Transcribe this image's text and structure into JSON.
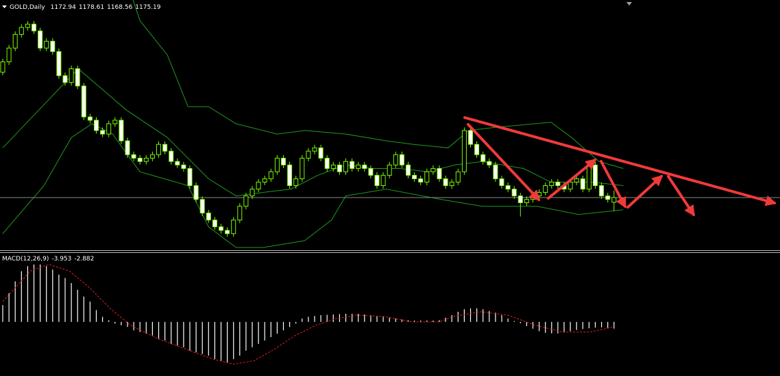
{
  "header": {
    "symbol": "GOLD,Daily"
  },
  "chart_data": [
    {
      "type": "candlestick",
      "up_color": "#000000",
      "down_color": "#ffffff",
      "wick_color": "#7cfc00",
      "band_color": "#1f9a1f",
      "price_line_color": "#8a8a8a",
      "ylim": [
        1150,
        1271
      ],
      "candles": [
        [
          1236,
          1242.5,
          1234.5,
          1241
        ],
        [
          1241,
          1249.2,
          1239.5,
          1247.7
        ],
        [
          1247.7,
          1255.8,
          1246.2,
          1254.3
        ],
        [
          1254.3,
          1259.2,
          1252.8,
          1257.7
        ],
        [
          1257.7,
          1260.8,
          1256.2,
          1259.3
        ],
        [
          1259.3,
          1260.8,
          1254.5,
          1256
        ],
        [
          1256,
          1257.5,
          1246.2,
          1247.7
        ],
        [
          1247.7,
          1252.5,
          1246.2,
          1251
        ],
        [
          1251,
          1252.5,
          1244.5,
          1246
        ],
        [
          1246,
          1247.5,
          1232.8,
          1234.3
        ],
        [
          1234.3,
          1235.8,
          1229.5,
          1231
        ],
        [
          1231,
          1239.2,
          1229.5,
          1237.7
        ],
        [
          1237.7,
          1239.2,
          1227.8,
          1229.3
        ],
        [
          1229.3,
          1230.8,
          1212.8,
          1214.3
        ],
        [
          1214.3,
          1215.8,
          1211.2,
          1212.7
        ],
        [
          1212.7,
          1214.2,
          1206.2,
          1207.7
        ],
        [
          1207.7,
          1209.2,
          1204.5,
          1206
        ],
        [
          1206,
          1212.5,
          1204.5,
          1211
        ],
        [
          1211,
          1214.2,
          1209.5,
          1212.7
        ],
        [
          1212.7,
          1214.2,
          1201.2,
          1202.7
        ],
        [
          1202.7,
          1204.2,
          1194.5,
          1196
        ],
        [
          1196,
          1197.5,
          1192.8,
          1194.3
        ],
        [
          1194.3,
          1195.8,
          1191.2,
          1192.7
        ],
        [
          1192.7,
          1195.8,
          1191.2,
          1194.3
        ],
        [
          1194.3,
          1197.5,
          1192.8,
          1196
        ],
        [
          1196,
          1202.5,
          1194.5,
          1201
        ],
        [
          1201,
          1202.5,
          1196.2,
          1197.7
        ],
        [
          1197.7,
          1199.2,
          1191.2,
          1192.7
        ],
        [
          1192.7,
          1194.2,
          1189.5,
          1191
        ],
        [
          1191,
          1192.5,
          1187.8,
          1189.3
        ],
        [
          1189.3,
          1190.8,
          1179.5,
          1181
        ],
        [
          1181,
          1182.5,
          1172.8,
          1174.3
        ],
        [
          1174.3,
          1175.8,
          1166.2,
          1167.7
        ],
        [
          1167.7,
          1169.2,
          1162.8,
          1164.3
        ],
        [
          1164.3,
          1165.8,
          1159.5,
          1161
        ],
        [
          1161,
          1162.5,
          1157.8,
          1159.3
        ],
        [
          1159.3,
          1160.8,
          1156.2,
          1157.7
        ],
        [
          1157.7,
          1165.8,
          1156.2,
          1164.3
        ],
        [
          1164.3,
          1172.5,
          1162.8,
          1171
        ],
        [
          1171,
          1177.5,
          1169.5,
          1176
        ],
        [
          1176,
          1180.8,
          1174.5,
          1179.3
        ],
        [
          1179.3,
          1184.2,
          1177.8,
          1182.7
        ],
        [
          1182.7,
          1185.8,
          1181.2,
          1184.3
        ],
        [
          1184.3,
          1189.2,
          1182.8,
          1187.7
        ],
        [
          1187.7,
          1195.8,
          1186.2,
          1194.3
        ],
        [
          1194.3,
          1195.8,
          1189.5,
          1191
        ],
        [
          1191,
          1192.5,
          1179.5,
          1181
        ],
        [
          1181,
          1185.8,
          1179.5,
          1184.3
        ],
        [
          1184.3,
          1195.8,
          1182.8,
          1194.3
        ],
        [
          1194.3,
          1199.2,
          1192.8,
          1197.7
        ],
        [
          1197.7,
          1200.8,
          1196.2,
          1199.3
        ],
        [
          1199.3,
          1200.8,
          1192.8,
          1194.3
        ],
        [
          1194.3,
          1195.8,
          1187.8,
          1189.3
        ],
        [
          1189.3,
          1192.5,
          1187.8,
          1191
        ],
        [
          1191,
          1192.5,
          1186.2,
          1187.7
        ],
        [
          1187.7,
          1194.2,
          1186.2,
          1192.7
        ],
        [
          1192.7,
          1194.2,
          1187.8,
          1189.3
        ],
        [
          1189.3,
          1192.5,
          1187.8,
          1191
        ],
        [
          1191,
          1192.5,
          1187.8,
          1189.3
        ],
        [
          1189.3,
          1190.8,
          1184.5,
          1186
        ],
        [
          1186,
          1187.5,
          1179.5,
          1181
        ],
        [
          1181,
          1187.5,
          1179.5,
          1186
        ],
        [
          1186,
          1192.5,
          1184.5,
          1191
        ],
        [
          1191,
          1197.5,
          1189.5,
          1196
        ],
        [
          1196,
          1197.5,
          1189.5,
          1191
        ],
        [
          1191,
          1192.5,
          1184.5,
          1186
        ],
        [
          1186,
          1187.5,
          1182.8,
          1184.3
        ],
        [
          1184.3,
          1185.8,
          1181.2,
          1182.7
        ],
        [
          1182.7,
          1189.2,
          1181.2,
          1187.7
        ],
        [
          1187.7,
          1190.8,
          1186.2,
          1189.3
        ],
        [
          1189.3,
          1190.8,
          1182.8,
          1184.3
        ],
        [
          1184.3,
          1185.8,
          1179.5,
          1181
        ],
        [
          1181,
          1184.2,
          1179.5,
          1182.7
        ],
        [
          1182.7,
          1189.2,
          1181.2,
          1187.7
        ],
        [
          1187.7,
          1209.2,
          1186.2,
          1207.7
        ],
        [
          1207.7,
          1209.2,
          1199.5,
          1201
        ],
        [
          1201,
          1202.5,
          1194.5,
          1196
        ],
        [
          1196,
          1197.5,
          1191.2,
          1192.7
        ],
        [
          1192.7,
          1194.2,
          1189.5,
          1191
        ],
        [
          1191,
          1192.5,
          1182.8,
          1184.3
        ],
        [
          1184.3,
          1185.8,
          1179.5,
          1181
        ],
        [
          1181,
          1182.5,
          1177.8,
          1179.3
        ],
        [
          1179.3,
          1180.8,
          1174.5,
          1176
        ],
        [
          1176,
          1177.5,
          1166,
          1172.7
        ],
        [
          1172.7,
          1175.8,
          1171.2,
          1174.3
        ],
        [
          1174.3,
          1177.5,
          1172.8,
          1176
        ],
        [
          1176,
          1179.2,
          1174.5,
          1177.7
        ],
        [
          1177.7,
          1182.5,
          1176.2,
          1181
        ],
        [
          1181,
          1184.2,
          1179.5,
          1182.7
        ],
        [
          1182.7,
          1184.2,
          1179.5,
          1181
        ],
        [
          1181,
          1182.5,
          1177.8,
          1179.3
        ],
        [
          1179.3,
          1184.2,
          1177.8,
          1182.7
        ],
        [
          1182.7,
          1185.8,
          1181.2,
          1184.3
        ],
        [
          1184.3,
          1185.8,
          1177.8,
          1179.3
        ],
        [
          1179.3,
          1192.5,
          1177.8,
          1191
        ],
        [
          1191,
          1192.5,
          1179.5,
          1181
        ],
        [
          1181,
          1182.5,
          1174.5,
          1176
        ],
        [
          1176,
          1177.5,
          1172.8,
          1174.3
        ],
        [
          1172.94,
          1178.61,
          1168.56,
          1175.19
        ]
      ],
      "bands": [
        {
          "x": [
            16.5,
            20.9,
            22,
            26.4,
            29.7,
            33,
            37.4,
            44,
            48.4,
            55,
            61.5,
            65.9,
            71.4,
            74.7,
            79.1,
            87.9,
            91.2,
            95.6,
            99.5
          ],
          "values": [
            1284.3,
            1271,
            1261,
            1244.3,
            1219.3,
            1219.3,
            1211,
            1206,
            1207.7,
            1206,
            1202.7,
            1201,
            1199.3,
            1207.7,
            1209.3,
            1211.7,
            1204.3,
            1192.7,
            1189.3
          ]
        },
        {
          "x": [
            0,
            12.1,
            19.8,
            26.4,
            33,
            37.4,
            41.8,
            46.2,
            50.5,
            55,
            59.3,
            63.7,
            68.1,
            72.5,
            76.9,
            83.5,
            87.9,
            94.5,
            99.5
          ],
          "values": [
            1199.3,
            1237.7,
            1217.7,
            1204.3,
            1184.3,
            1176,
            1177.7,
            1179.3,
            1186,
            1191,
            1189.3,
            1189.3,
            1187.7,
            1191,
            1192.7,
            1189.3,
            1182.7,
            1182.7,
            1181
          ]
        },
        {
          "x": [
            0,
            6.6,
            11,
            14.3,
            17.6,
            22,
            29.7,
            33,
            37.4,
            41.8,
            48.4,
            52.7,
            55,
            61.5,
            70.3,
            76.9,
            85.7,
            92.3,
            99.5
          ],
          "values": [
            1157.7,
            1181,
            1204.3,
            1211,
            1206,
            1187.7,
            1181,
            1161,
            1151,
            1151,
            1154.3,
            1164.3,
            1176,
            1179.3,
            1174.3,
            1171,
            1171,
            1167,
            1169.3
          ]
        }
      ]
    },
    {
      "type": "macd",
      "title": "MACD(12,26,9)",
      "bar_color": "#ffffff",
      "signal_color": "#e02020",
      "ylim": [
        -31.2,
        40
      ],
      "values": [
        10,
        17,
        24,
        30,
        33,
        34,
        34,
        33,
        31,
        28,
        26,
        23,
        19,
        15,
        12,
        7,
        3,
        1,
        -1,
        -2,
        -3,
        -5,
        -6,
        -7,
        -8,
        -10,
        -11,
        -13,
        -14,
        -15,
        -17,
        -18,
        -19,
        -20,
        -22,
        -23,
        -24,
        -22,
        -20,
        -17,
        -15,
        -13,
        -11,
        -9,
        -7,
        -5,
        -3,
        -1,
        2,
        3,
        3.5,
        4,
        4.2,
        4.4,
        4.6,
        4.8,
        4.8,
        4.8,
        4.4,
        4,
        3.6,
        3.2,
        2.6,
        2,
        1.4,
        1,
        0.8,
        0.8,
        0.8,
        0.8,
        1,
        2.5,
        4,
        6,
        7.5,
        8,
        8,
        7.5,
        6.5,
        5.5,
        4,
        2,
        0.5,
        -0.8,
        -2.5,
        -4,
        -5.5,
        -6.5,
        -6.8,
        -6.8,
        -6.2,
        -5.5,
        -4.8,
        -4.2,
        -3.8,
        -3.4,
        -3.2,
        -3.5,
        -3.953
      ],
      "signal": {
        "x": [
          0,
          4.4,
          7.4,
          10.7,
          14,
          17.2,
          20.5,
          24.9,
          29.3,
          33.7,
          37,
          40.3,
          43.6,
          46.9,
          50.2,
          53.5,
          56.8,
          61.2,
          65.6,
          70,
          72.2,
          76.6,
          81,
          85.4,
          89.8,
          94.2,
          98
        ],
        "values": [
          12,
          30,
          34,
          30,
          20,
          8,
          -2,
          -10,
          -16,
          -22,
          -25,
          -23,
          -16,
          -8,
          -2,
          2,
          4,
          3.2,
          0,
          0,
          3.2,
          6,
          4,
          -2,
          -6,
          -6,
          -2.882
        ]
      }
    }
  ]
}
